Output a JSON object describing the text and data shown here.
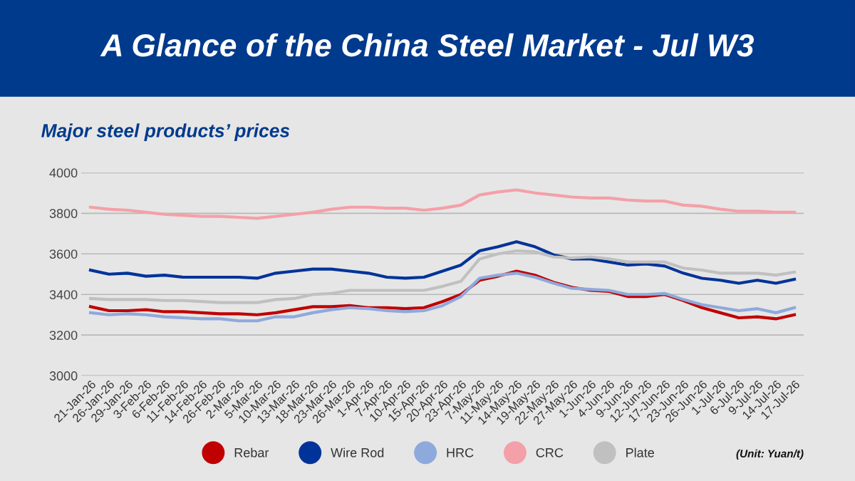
{
  "chart_data": {
    "type": "line",
    "title": "A Glance of the China Steel Market - Jul W3",
    "subtitle": "Major steel products’ prices",
    "categories": [
      "21-Jan-26",
      "26-Jan-26",
      "29-Jan-26",
      "3-Feb-26",
      "6-Feb-26",
      "11-Feb-26",
      "14-Feb-26",
      "26-Feb-26",
      "2-Mar-26",
      "5-Mar-26",
      "10-Mar-26",
      "13-Mar-26",
      "18-Mar-26",
      "23-Mar-26",
      "26-Mar-26",
      "1-Apr-26",
      "7-Apr-26",
      "10-Apr-26",
      "15-Apr-26",
      "20-Apr-26",
      "23-Apr-26",
      "7-May-26",
      "11-May-26",
      "14-May-26",
      "19-May-26",
      "22-May-26",
      "27-May-26",
      "1-Jun-26",
      "4-Jun-26",
      "9-Jun-26",
      "12-Jun-26",
      "17-Jun-26",
      "23-Jun-26",
      "26-Jun-26",
      "1-Jul-26",
      "6-Jul-26",
      "9-Jul-26",
      "14-Jul-26",
      "17-Jul-26"
    ],
    "series": [
      {
        "name": "Rebar",
        "color": "#c00000",
        "values": [
          3340,
          3320,
          3320,
          3325,
          3315,
          3315,
          3310,
          3305,
          3305,
          3300,
          3310,
          3325,
          3340,
          3340,
          3345,
          3335,
          3335,
          3330,
          3335,
          3365,
          3400,
          3470,
          3490,
          3515,
          3495,
          3460,
          3435,
          3420,
          3415,
          3390,
          3390,
          3400,
          3370,
          3335,
          3310,
          3285,
          3290,
          3280,
          3300
        ]
      },
      {
        "name": "Wire Rod",
        "color": "#003399",
        "values": [
          3520,
          3500,
          3505,
          3490,
          3495,
          3485,
          3485,
          3485,
          3485,
          3480,
          3505,
          3515,
          3525,
          3525,
          3515,
          3505,
          3485,
          3480,
          3485,
          3515,
          3545,
          3615,
          3635,
          3660,
          3635,
          3595,
          3575,
          3575,
          3560,
          3545,
          3550,
          3540,
          3505,
          3480,
          3470,
          3455,
          3470,
          3455,
          3475
        ]
      },
      {
        "name": "HRC",
        "color": "#8ea9db",
        "values": [
          3310,
          3300,
          3305,
          3300,
          3290,
          3285,
          3280,
          3280,
          3270,
          3270,
          3290,
          3290,
          3310,
          3325,
          3335,
          3330,
          3320,
          3315,
          3320,
          3345,
          3390,
          3480,
          3495,
          3505,
          3485,
          3455,
          3430,
          3425,
          3420,
          3400,
          3400,
          3405,
          3375,
          3350,
          3335,
          3320,
          3330,
          3310,
          3335
        ]
      },
      {
        "name": "CRC",
        "color": "#f4a0a8",
        "values": [
          3830,
          3820,
          3815,
          3805,
          3795,
          3790,
          3785,
          3785,
          3780,
          3775,
          3785,
          3795,
          3805,
          3820,
          3830,
          3830,
          3825,
          3825,
          3815,
          3825,
          3840,
          3890,
          3905,
          3915,
          3900,
          3890,
          3880,
          3875,
          3875,
          3865,
          3860,
          3860,
          3840,
          3835,
          3820,
          3810,
          3810,
          3805,
          3805
        ]
      },
      {
        "name": "Plate",
        "color": "#c0c0c0",
        "values": [
          3380,
          3375,
          3375,
          3375,
          3370,
          3370,
          3365,
          3360,
          3360,
          3360,
          3375,
          3380,
          3400,
          3405,
          3420,
          3420,
          3420,
          3420,
          3420,
          3440,
          3465,
          3575,
          3600,
          3615,
          3610,
          3585,
          3580,
          3585,
          3575,
          3560,
          3560,
          3560,
          3530,
          3520,
          3505,
          3505,
          3505,
          3495,
          3510
        ]
      }
    ],
    "ylim": [
      3000,
      4000
    ],
    "yticks": [
      3000,
      3200,
      3400,
      3600,
      3800,
      4000
    ],
    "grid": "y",
    "legend": "bottom",
    "marker": "none",
    "line_style": "solid",
    "annotations": [
      "(Unit: Yuan/t)"
    ]
  }
}
